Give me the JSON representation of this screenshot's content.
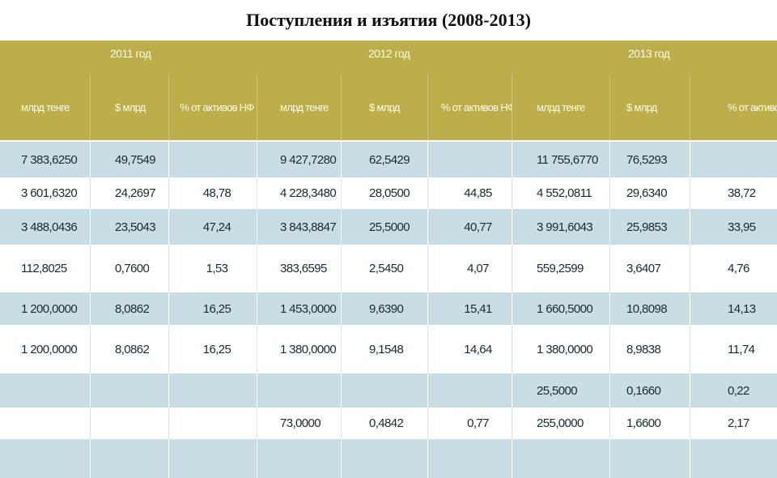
{
  "title": "Поступления и изъятия (2008-2013)",
  "years": [
    "2011 год",
    "2012 год",
    "2013 год"
  ],
  "headers": [
    "млрд тенге",
    "$ млрд",
    "% от активов НФ",
    "млрд тенге",
    "$ млрд",
    "% от активов НФ",
    "млрд тенге",
    "$ млрд",
    "% от активов НФ"
  ],
  "rows": [
    {
      "shade": "blue",
      "cells": [
        "7 383,6250",
        "49,7549",
        "",
        "9 427,7280",
        "62,5429",
        "",
        "11 755,6770",
        "76,5293",
        ""
      ]
    },
    {
      "shade": "white",
      "cells": [
        "3 601,6320",
        "24,2697",
        "48,78",
        "4 228,3480",
        "28,0500",
        "44,85",
        "4 552,0811",
        "29,6340",
        "38,72"
      ]
    },
    {
      "shade": "blue",
      "cells": [
        "3 488,0436",
        "23,5043",
        "47,24",
        "3 843,8847",
        "25,5000",
        "40,77",
        "3 991,6043",
        "25,9853",
        "33,95"
      ]
    },
    {
      "shade": "white",
      "cells": [
        "112,8025",
        "0,7600",
        "1,53",
        "383,6595",
        "2,5450",
        "4,07",
        "559,2599",
        "3,6407",
        "4,76"
      ]
    },
    {
      "shade": "blue",
      "cells": [
        "1 200,0000",
        "8,0862",
        "16,25",
        "1 453,0000",
        "9,6390",
        "15,41",
        "1 660,5000",
        "10,8098",
        "14,13"
      ]
    },
    {
      "shade": "white",
      "cells": [
        "1 200,0000",
        "8,0862",
        "16,25",
        "1 380,0000",
        "9,1548",
        "14,64",
        "1 380,0000",
        "8,9838",
        "11,74"
      ]
    },
    {
      "shade": "blue",
      "cells": [
        "",
        "",
        "",
        "",
        "",
        "",
        "25,5000",
        "0,1660",
        "0,22"
      ]
    },
    {
      "shade": "white",
      "cells": [
        "",
        "",
        "",
        "73,0000",
        "0,4842",
        "0,77",
        "255,0000",
        "1,6600",
        "2,17"
      ]
    },
    {
      "shade": "blue",
      "cells": [
        "",
        "",
        "",
        "",
        "",
        "",
        "",
        "",
        ""
      ]
    }
  ]
}
